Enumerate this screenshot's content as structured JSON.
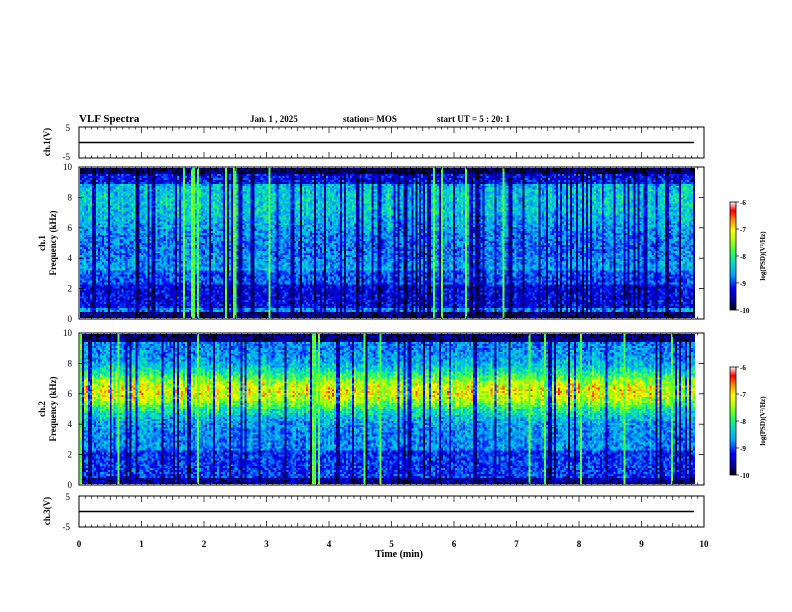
{
  "header": {
    "title": "VLF Spectra",
    "date": "Jan. 1 , 2025",
    "station": "station= MOS",
    "start_ut": "start UT =  5 : 20: 1"
  },
  "chart_data": [
    {
      "type": "line",
      "name": "ch1-waveform",
      "ylabel": "ch.1(V)",
      "ylim": [
        -5,
        5
      ],
      "yticks": [
        "5",
        "-5"
      ],
      "x": [
        0,
        10
      ],
      "values": [
        0,
        0
      ],
      "xlim": [
        0,
        10
      ]
    },
    {
      "type": "heatmap",
      "name": "ch1-spectrogram",
      "ylabel": "ch.1\nFrequency (kHz)",
      "ylim": [
        0,
        10
      ],
      "yticks": [
        "0",
        "2",
        "4",
        "6",
        "8",
        "10"
      ],
      "xlim": [
        0,
        10
      ],
      "data_extent_x": 9.85,
      "color_range": [
        -10,
        -6
      ],
      "colorbar_label": "log(PSD)(V²/Hz)",
      "colorbar_ticks": [
        "-6",
        "-7",
        "-8",
        "-9",
        "-10"
      ]
    },
    {
      "type": "heatmap",
      "name": "ch2-spectrogram",
      "ylabel": "ch.2\nFrequency (kHz)",
      "ylim": [
        0,
        10
      ],
      "yticks": [
        "0",
        "2",
        "4",
        "6",
        "8",
        "10"
      ],
      "xlim": [
        0,
        10
      ],
      "data_extent_x": 9.85,
      "color_range": [
        -10,
        -6
      ],
      "colorbar_label": "log(PSD)(V²/Hz)",
      "colorbar_ticks": [
        "-6",
        "-7",
        "-8",
        "-9",
        "-10"
      ]
    },
    {
      "type": "line",
      "name": "ch3-waveform",
      "ylabel": "ch.3(V)",
      "ylim": [
        -5,
        5
      ],
      "yticks": [
        "5",
        "-5"
      ],
      "x": [
        0,
        10
      ],
      "values": [
        0,
        0
      ],
      "xlim": [
        0,
        10
      ]
    }
  ],
  "xaxis": {
    "label": "Time (min)",
    "ticks": [
      "0",
      "1",
      "2",
      "3",
      "4",
      "5",
      "6",
      "7",
      "8",
      "9",
      "10"
    ]
  },
  "colors": {
    "axis": "#000000",
    "colormap": [
      "#000080",
      "#0000ff",
      "#00b4ff",
      "#00e0a0",
      "#40ff40",
      "#c0ff00",
      "#ffff00",
      "#ff8000",
      "#ff0000",
      "#ffffff"
    ]
  }
}
